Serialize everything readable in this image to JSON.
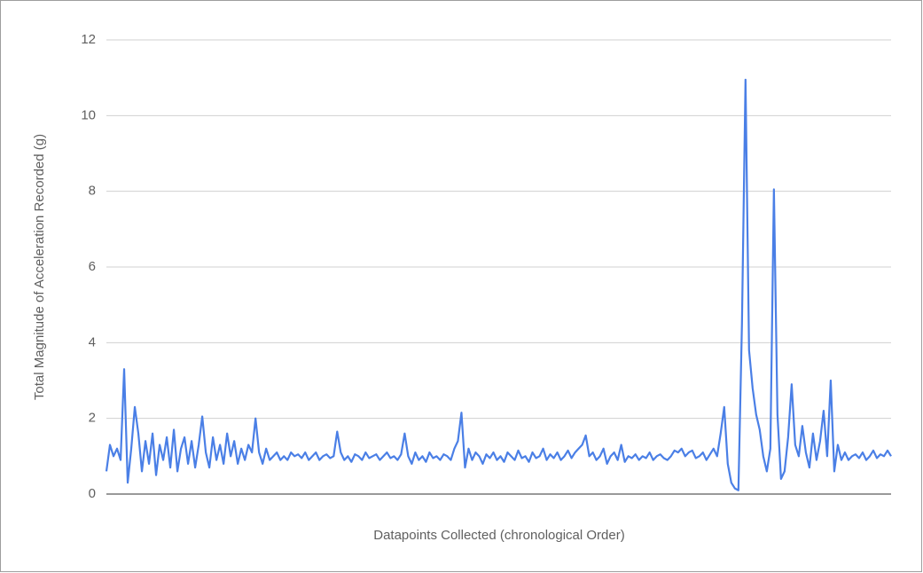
{
  "chart_data": {
    "type": "line",
    "x_label": "Datapoints Collected (chronological Order)",
    "y_label": "Total Magnitude of Acceleration Recorded (g)",
    "color": "#4a7fe6",
    "ylim": [
      0,
      12
    ],
    "yticks": [
      0,
      2,
      4,
      6,
      8,
      10,
      12
    ],
    "grid": true,
    "values": [
      0.6,
      1.3,
      1.0,
      1.2,
      0.9,
      3.3,
      0.3,
      1.2,
      2.3,
      1.6,
      0.6,
      1.4,
      0.8,
      1.6,
      0.5,
      1.3,
      0.9,
      1.5,
      0.7,
      1.7,
      0.6,
      1.2,
      1.5,
      0.8,
      1.4,
      0.7,
      1.3,
      2.05,
      1.1,
      0.7,
      1.5,
      0.9,
      1.3,
      0.8,
      1.6,
      1.0,
      1.4,
      0.8,
      1.2,
      0.9,
      1.3,
      1.1,
      2.0,
      1.1,
      0.8,
      1.2,
      0.9,
      1.0,
      1.1,
      0.9,
      1.0,
      0.9,
      1.1,
      1.0,
      1.05,
      0.95,
      1.1,
      0.9,
      1.0,
      1.1,
      0.9,
      1.0,
      1.05,
      0.95,
      1.0,
      1.65,
      1.1,
      0.9,
      1.0,
      0.85,
      1.05,
      1.0,
      0.9,
      1.1,
      0.95,
      1.0,
      1.05,
      0.9,
      1.0,
      1.1,
      0.95,
      1.0,
      0.9,
      1.05,
      1.6,
      1.0,
      0.8,
      1.1,
      0.9,
      1.0,
      0.85,
      1.1,
      0.95,
      1.0,
      0.9,
      1.05,
      1.0,
      0.9,
      1.2,
      1.4,
      2.15,
      0.7,
      1.2,
      0.9,
      1.1,
      1.0,
      0.8,
      1.05,
      0.95,
      1.1,
      0.9,
      1.0,
      0.85,
      1.1,
      1.0,
      0.9,
      1.15,
      0.95,
      1.0,
      0.85,
      1.1,
      0.95,
      1.0,
      1.2,
      0.9,
      1.05,
      0.95,
      1.1,
      0.9,
      1.0,
      1.15,
      0.95,
      1.1,
      1.2,
      1.3,
      1.55,
      1.0,
      1.1,
      0.9,
      1.0,
      1.2,
      0.8,
      1.0,
      1.1,
      0.9,
      1.3,
      0.85,
      1.0,
      0.95,
      1.05,
      0.9,
      1.0,
      0.95,
      1.1,
      0.9,
      1.0,
      1.05,
      0.95,
      0.9,
      1.0,
      1.15,
      1.1,
      1.2,
      1.0,
      1.1,
      1.15,
      0.95,
      1.0,
      1.1,
      0.9,
      1.05,
      1.2,
      1.0,
      1.6,
      2.3,
      0.8,
      0.3,
      0.15,
      0.1,
      4.5,
      10.95,
      3.8,
      2.8,
      2.1,
      1.7,
      1.0,
      0.6,
      1.2,
      8.05,
      2.1,
      0.4,
      0.6,
      1.5,
      2.9,
      1.3,
      1.0,
      1.8,
      1.1,
      0.7,
      1.6,
      0.9,
      1.4,
      2.2,
      1.0,
      3.0,
      0.6,
      1.3,
      0.9,
      1.1,
      0.9,
      1.0,
      1.05,
      0.95,
      1.1,
      0.9,
      1.0,
      1.15,
      0.95,
      1.05,
      1.0,
      1.15,
      1.0
    ]
  }
}
